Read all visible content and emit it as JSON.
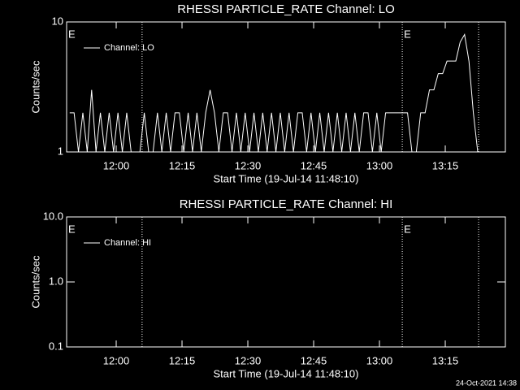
{
  "chart_data": [
    {
      "type": "line",
      "title": "RHESSI PARTICLE_RATE Channel: LO",
      "xlabel": "Start Time (19-Jul-14 11:48:10)",
      "ylabel": "Counts/sec",
      "log_y": true,
      "legend": "top-left",
      "xlim": [
        708.7,
        808.7
      ],
      "ylim": [
        1,
        10
      ],
      "xticks": [
        {
          "value": 720,
          "label": "12:00"
        },
        {
          "value": 735,
          "label": "12:15"
        },
        {
          "value": 750,
          "label": "12:30"
        },
        {
          "value": 765,
          "label": "12:45"
        },
        {
          "value": 780,
          "label": "13:00"
        },
        {
          "value": 795,
          "label": "13:15"
        }
      ],
      "yticks": [
        1,
        10
      ],
      "vlines": [
        725.9,
        785.2,
        802.6
      ],
      "annotations": [
        {
          "x": 708.7,
          "text": "E"
        },
        {
          "x": 785.2,
          "text": "E"
        }
      ],
      "series": [
        {
          "name": "Channel: LO",
          "color": "#ffffff",
          "x": [
            709.4,
            710.4,
            711.4,
            712.4,
            713.4,
            714.4,
            715.4,
            716.4,
            717.4,
            718.4,
            719.4,
            720.4,
            721.4,
            722.4,
            723.4,
            724.4,
            725.4,
            726.4,
            727.4,
            728.4,
            729.4,
            730.4,
            731.4,
            732.4,
            733.4,
            734.4,
            735.4,
            736.4,
            737.4,
            738.4,
            739.4,
            740.4,
            741.4,
            742.4,
            743.4,
            744.4,
            745.4,
            746.4,
            747.4,
            748.4,
            749.4,
            750.4,
            751.4,
            752.4,
            753.4,
            754.4,
            755.4,
            756.4,
            757.4,
            758.4,
            759.4,
            760.4,
            761.4,
            762.4,
            763.4,
            764.4,
            765.4,
            766.4,
            767.4,
            768.4,
            769.4,
            770.4,
            771.4,
            772.4,
            773.4,
            774.4,
            775.4,
            776.4,
            777.4,
            778.4,
            779.4,
            780.4,
            781.4,
            782.4,
            783.4,
            784.4,
            785.4,
            786.4,
            787.4,
            788.4,
            789.4,
            790.4,
            791.4,
            792.4,
            793.4,
            794.4,
            795.4,
            796.4,
            797.4,
            798.4,
            799.4,
            800.4,
            801.4,
            802.4
          ],
          "values": [
            2,
            2,
            1,
            2,
            1,
            3,
            1,
            2,
            1,
            2,
            1,
            2,
            1,
            2,
            1,
            1,
            1,
            2,
            1,
            1,
            2,
            1,
            2,
            1,
            2,
            2,
            1,
            2,
            1,
            2,
            1,
            2,
            3,
            2,
            1,
            2,
            2,
            1,
            2,
            1,
            2,
            1,
            2,
            1,
            2,
            1,
            2,
            1,
            2,
            1,
            2,
            1,
            2,
            2,
            1,
            2,
            1,
            2,
            1,
            2,
            1,
            2,
            1,
            2,
            1,
            2,
            1,
            2,
            2,
            1,
            2,
            1,
            2,
            2,
            2,
            2,
            2,
            2,
            1,
            1,
            2,
            2,
            3,
            3,
            4,
            4,
            5,
            5,
            5,
            7,
            8,
            5,
            2,
            1
          ]
        }
      ]
    },
    {
      "type": "line",
      "title": "RHESSI PARTICLE_RATE Channel: HI",
      "xlabel": "Start Time (19-Jul-14 11:48:10)",
      "ylabel": "Counts/sec",
      "log_y": true,
      "legend": "top-left",
      "xlim": [
        708.7,
        808.7
      ],
      "ylim": [
        0.1,
        10
      ],
      "xticks": [
        {
          "value": 720,
          "label": "12:00"
        },
        {
          "value": 735,
          "label": "12:15"
        },
        {
          "value": 750,
          "label": "12:30"
        },
        {
          "value": 765,
          "label": "12:45"
        },
        {
          "value": 780,
          "label": "13:00"
        },
        {
          "value": 795,
          "label": "13:15"
        }
      ],
      "yticks": [
        {
          "value": 0.1,
          "label": "0.1"
        },
        {
          "value": 1,
          "label": "1.0"
        },
        {
          "value": 10,
          "label": "10.0"
        }
      ],
      "vlines": [
        725.9,
        785.2,
        802.6
      ],
      "annotations": [
        {
          "x": 708.7,
          "text": "E"
        },
        {
          "x": 785.2,
          "text": "E"
        }
      ],
      "series": [
        {
          "name": "Channel: HI",
          "color": "#ffffff",
          "x": [],
          "values": []
        }
      ]
    }
  ],
  "footer": "24-Oct-2021 14:38"
}
